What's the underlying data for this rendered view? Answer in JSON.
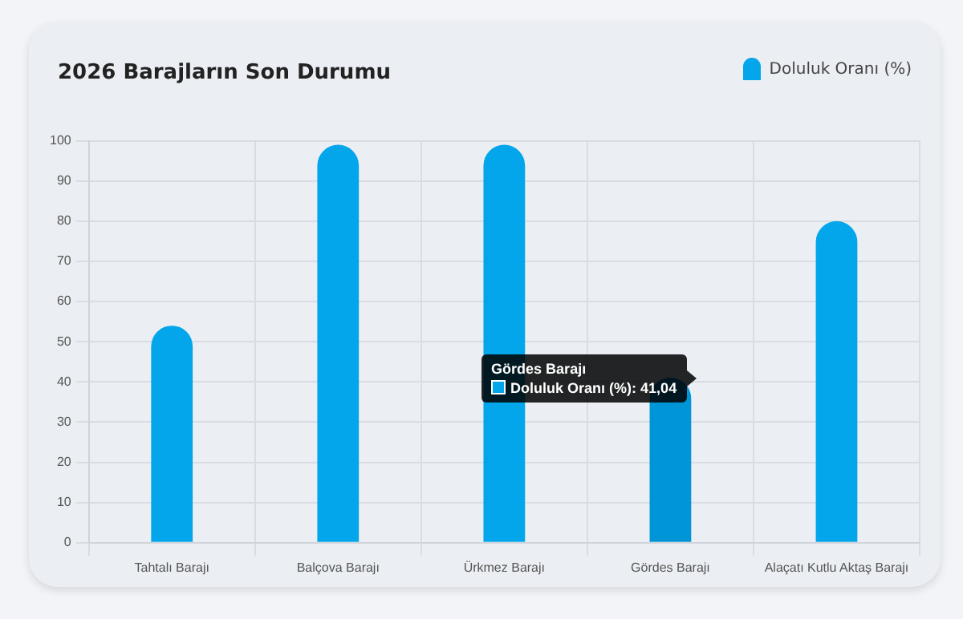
{
  "chart_data": {
    "type": "bar",
    "title": "2026 Barajların Son Durumu",
    "categories": [
      "Tahtalı Barajı",
      "Balçova Barajı",
      "Ürkmez Barajı",
      "Gördes Barajı",
      "Alaçatı Kutlu Aktaş Barajı"
    ],
    "series": [
      {
        "name": "Doluluk Oranı (%)",
        "color": "#03a6ea",
        "colors": [
          "#03a6ea",
          "#03a6ea",
          "#03a6ea",
          "#0095d6",
          "#03a6ea"
        ],
        "values": [
          54,
          99,
          99,
          41.04,
          80
        ]
      }
    ],
    "ylim": [
      0,
      100
    ],
    "yticks": [
      0,
      10,
      20,
      30,
      40,
      50,
      60,
      70,
      80,
      90,
      100
    ],
    "grid": true,
    "legend": "top right",
    "annotations": [
      "Gördes Barajı",
      "Doluluk Oranı (%): 41,04"
    ]
  }
}
